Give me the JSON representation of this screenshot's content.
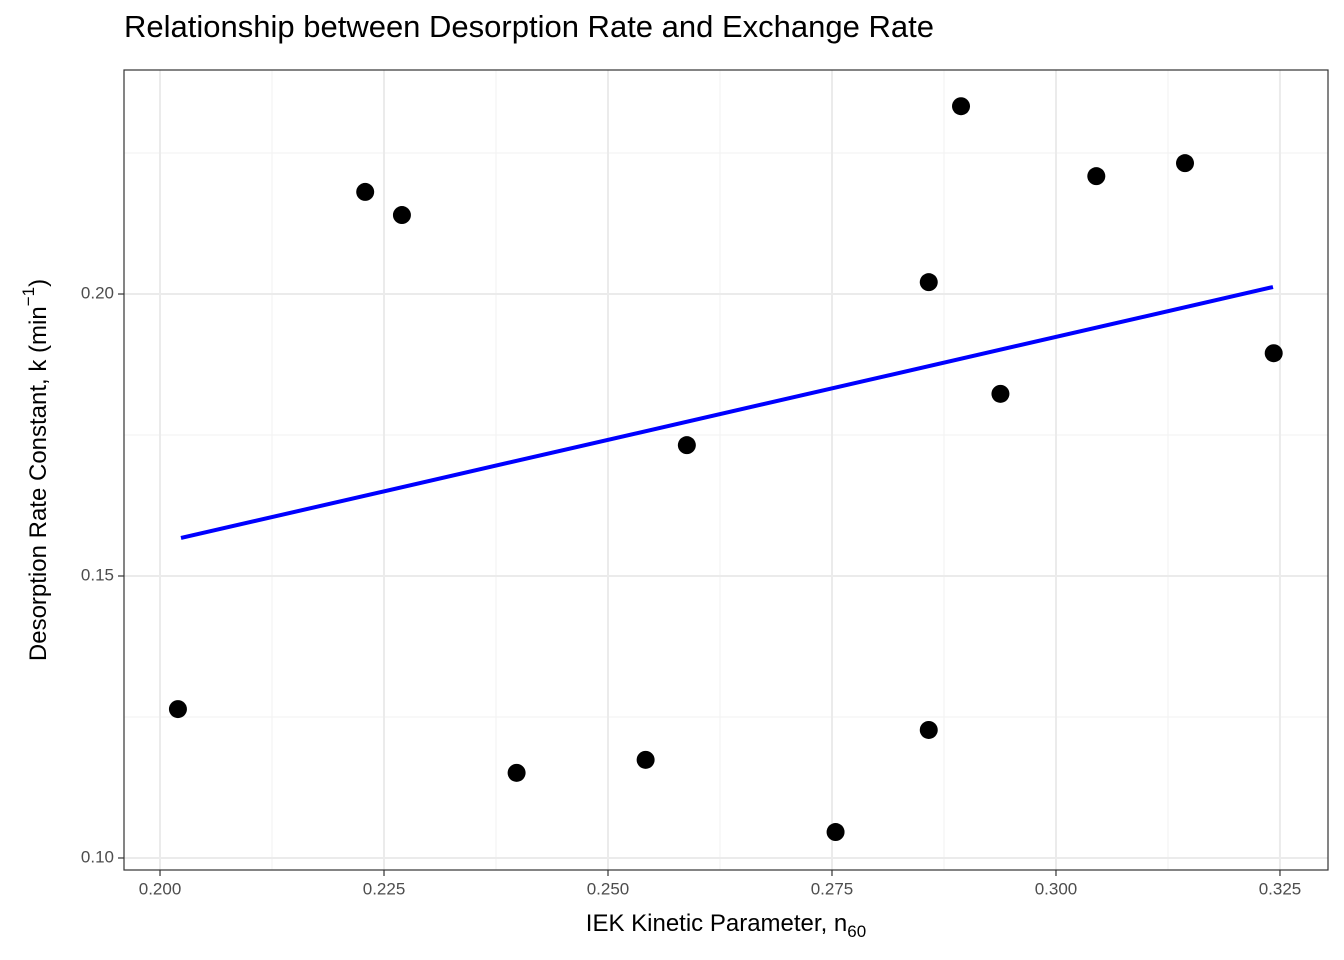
{
  "chart_data": {
    "type": "scatter",
    "title": "Relationship between Desorption Rate and Exchange Rate",
    "x_label": {
      "text": "IEK Kinetic Parameter, n",
      "sub": "60"
    },
    "y_label": {
      "text": "Desorption Rate Constant, k (min",
      "sup": "−1",
      "close": ")"
    },
    "x": [
      0.202,
      0.2229,
      0.227,
      0.2398,
      0.2542,
      0.2588,
      0.2754,
      0.2858,
      0.2858,
      0.2894,
      0.2938,
      0.3045,
      0.3144,
      0.3243
    ],
    "y": [
      0.1264,
      0.2181,
      0.214,
      0.1151,
      0.1174,
      0.1732,
      0.1046,
      0.2021,
      0.1227,
      0.2333,
      0.1823,
      0.2209,
      0.2232,
      0.1895
    ],
    "color": "#000000",
    "fit": {
      "x": [
        0.20234,
        0.32422
      ],
      "values": [
        0.15674,
        0.20124
      ],
      "color": "#0000ff"
    },
    "xlim": [
      0.19598,
      0.33036
    ],
    "ylim": [
      0.09787,
      0.23972
    ],
    "xticks": [
      {
        "value": 0.2,
        "label": "0.200"
      },
      {
        "value": 0.225,
        "label": "0.225"
      },
      {
        "value": 0.25,
        "label": "0.250"
      },
      {
        "value": 0.275,
        "label": "0.275"
      },
      {
        "value": 0.3,
        "label": "0.300"
      },
      {
        "value": 0.325,
        "label": "0.325"
      }
    ],
    "yticks": [
      {
        "value": 0.1,
        "label": "0.10"
      },
      {
        "value": 0.15,
        "label": "0.15"
      },
      {
        "value": 0.2,
        "label": "0.20"
      }
    ],
    "grid": true
  }
}
